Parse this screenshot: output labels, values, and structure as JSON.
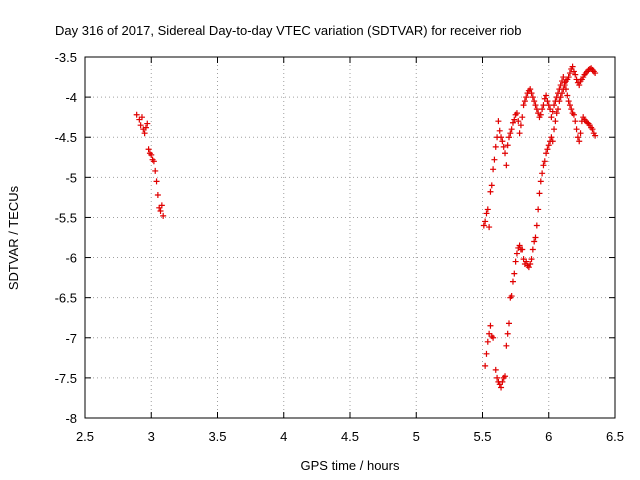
{
  "chart_data": {
    "type": "scatter",
    "title": "Day 316 of 2017, Sidereal Day-to-day VTEC variation (SDTVAR) for receiver riob",
    "xlabel": "GPS time / hours",
    "ylabel": "SDTVAR / TECUs",
    "xlim": [
      2.5,
      6.5
    ],
    "ylim": [
      -8,
      -3.5
    ],
    "xticks": [
      2.5,
      3,
      3.5,
      4,
      4.5,
      5,
      5.5,
      6,
      6.5
    ],
    "xtick_labels": [
      "2.5",
      "3",
      "3.5",
      "4",
      "4.5",
      "5",
      "5.5",
      "6",
      "6.5"
    ],
    "yticks": [
      -8,
      -7.5,
      -7,
      -6.5,
      -6,
      -5.5,
      -5,
      -4.5,
      -4,
      -3.5
    ],
    "ytick_labels": [
      "-8",
      "-7.5",
      "-7",
      "-6.5",
      "-6",
      "-5.5",
      "-5",
      "-4.5",
      "-4",
      "-3.5"
    ],
    "grid": true,
    "marker": "+",
    "color": "#e00000",
    "series": [
      {
        "name": "SDTVAR",
        "x": [
          2.89,
          2.91,
          2.92,
          2.93,
          2.94,
          2.95,
          2.96,
          2.97,
          2.98,
          2.99,
          3.0,
          3.01,
          3.02,
          3.03,
          3.04,
          3.05,
          3.06,
          3.07,
          3.08,
          3.09,
          5.52,
          5.53,
          5.54,
          5.55,
          5.56,
          5.57,
          5.58,
          5.6,
          5.61,
          5.62,
          5.63,
          5.64,
          5.65,
          5.66,
          5.67,
          5.68,
          5.69,
          5.7,
          5.71,
          5.72,
          5.73,
          5.74,
          5.75,
          5.76,
          5.77,
          5.78,
          5.79,
          5.8,
          5.81,
          5.82,
          5.83,
          5.84,
          5.85,
          5.86,
          5.87,
          5.88,
          5.89,
          5.9,
          5.91,
          5.92,
          5.93,
          5.94,
          5.95,
          5.96,
          5.97,
          5.98,
          5.99,
          6.0,
          6.01,
          6.02,
          6.03,
          6.04,
          6.05,
          6.06,
          6.07,
          6.08,
          6.09,
          6.1,
          6.11,
          6.12,
          6.13,
          6.14,
          6.15,
          6.16,
          6.17,
          6.18,
          6.19,
          6.2,
          6.21,
          6.22,
          6.23,
          6.24,
          6.25,
          6.26,
          6.27,
          6.28,
          6.29,
          6.3,
          6.31,
          6.32,
          6.33,
          6.34,
          6.35,
          5.51,
          5.52,
          5.53,
          5.54,
          5.55,
          5.56,
          5.57,
          5.58,
          5.59,
          5.6,
          5.61,
          5.62,
          5.63,
          5.64,
          5.65,
          5.66,
          5.67,
          5.68,
          5.69,
          5.7,
          5.71,
          5.72,
          5.73,
          5.74,
          5.75,
          5.76,
          5.77,
          5.78,
          5.79,
          5.8,
          5.81,
          5.82,
          5.83,
          5.84,
          5.85,
          5.86,
          5.87,
          5.88,
          5.89,
          5.9,
          5.91,
          5.92,
          5.93,
          5.94,
          5.95,
          5.96,
          5.97,
          5.98,
          5.99,
          6.0,
          6.01,
          6.02,
          6.03,
          6.04,
          6.05,
          6.06,
          6.07,
          6.08,
          6.09,
          6.1,
          6.11,
          6.12,
          6.13,
          6.14,
          6.15,
          6.16,
          6.17,
          6.18,
          6.19,
          6.2,
          6.21,
          6.22,
          6.23,
          6.24,
          6.25,
          6.26,
          6.27,
          6.28,
          6.29,
          6.3,
          6.31,
          6.32,
          6.33,
          6.34,
          6.35
        ],
        "y": [
          -4.22,
          -4.28,
          -4.35,
          -4.25,
          -4.4,
          -4.45,
          -4.38,
          -4.33,
          -4.65,
          -4.7,
          -4.72,
          -4.78,
          -4.8,
          -4.92,
          -5.05,
          -5.22,
          -5.38,
          -5.42,
          -5.35,
          -5.48,
          -7.35,
          -7.2,
          -7.05,
          -6.95,
          -6.85,
          -6.98,
          -7.0,
          -7.4,
          -7.5,
          -7.55,
          -7.58,
          -7.62,
          -7.55,
          -7.5,
          -7.48,
          -7.1,
          -6.95,
          -6.82,
          -6.5,
          -6.48,
          -6.3,
          -6.2,
          -6.05,
          -5.95,
          -5.88,
          -5.85,
          -5.9,
          -5.9,
          -6.02,
          -6.08,
          -6.05,
          -6.1,
          -6.12,
          -6.08,
          -6.02,
          -5.9,
          -5.8,
          -5.75,
          -5.6,
          -5.4,
          -5.2,
          -5.05,
          -4.95,
          -4.85,
          -4.8,
          -4.7,
          -4.65,
          -4.6,
          -4.55,
          -4.5,
          -4.55,
          -4.4,
          -4.3,
          -4.2,
          -4.15,
          -4.05,
          -4.0,
          -3.95,
          -3.9,
          -3.85,
          -3.8,
          -3.78,
          -3.75,
          -3.7,
          -3.65,
          -3.62,
          -3.68,
          -3.72,
          -3.78,
          -3.82,
          -3.85,
          -3.8,
          -3.78,
          -3.75,
          -3.72,
          -3.7,
          -3.68,
          -3.66,
          -3.65,
          -3.64,
          -3.66,
          -3.68,
          -3.7,
          -5.6,
          -5.55,
          -5.45,
          -5.4,
          -5.62,
          -5.18,
          -5.1,
          -4.9,
          -4.78,
          -4.62,
          -4.5,
          -4.3,
          -4.42,
          -4.5,
          -4.55,
          -4.62,
          -4.7,
          -4.85,
          -4.6,
          -4.5,
          -4.45,
          -4.4,
          -4.32,
          -4.28,
          -4.22,
          -4.2,
          -4.3,
          -4.45,
          -4.35,
          -4.25,
          -4.1,
          -4.05,
          -4.0,
          -3.95,
          -3.92,
          -3.9,
          -3.95,
          -4.0,
          -4.05,
          -4.1,
          -4.15,
          -4.2,
          -4.25,
          -4.22,
          -4.15,
          -4.1,
          -4.02,
          -3.98,
          -4.05,
          -4.1,
          -4.15,
          -4.25,
          -4.18,
          -4.1,
          -4.05,
          -4.0,
          -3.95,
          -3.9,
          -3.85,
          -3.8,
          -3.75,
          -3.82,
          -3.9,
          -3.98,
          -4.05,
          -4.1,
          -4.15,
          -4.2,
          -4.22,
          -4.3,
          -4.4,
          -4.5,
          -4.55,
          -4.45,
          -4.3,
          -4.25,
          -4.28,
          -4.3,
          -4.32,
          -4.33,
          -4.35,
          -4.38,
          -4.4,
          -4.45,
          -4.48
        ]
      }
    ]
  }
}
